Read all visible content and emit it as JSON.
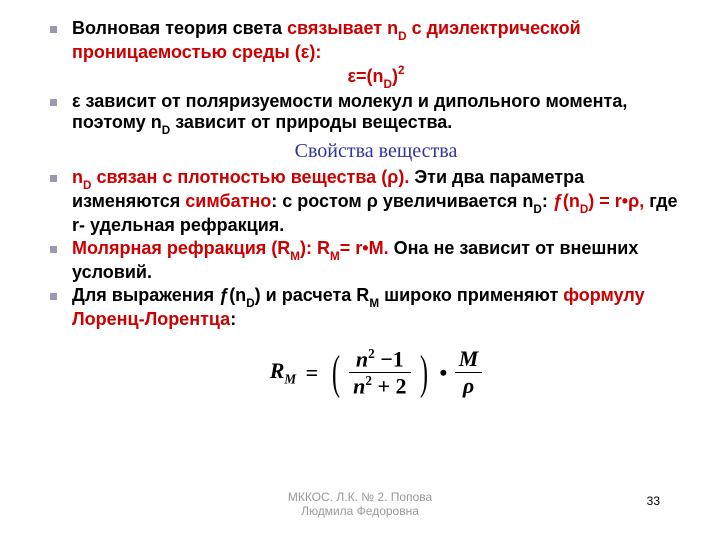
{
  "bullets": {
    "b1a": "Волновая теория света ",
    "b1b": "связывает n",
    "b1c": " с диэлектрической проницаемостью среды (ε):",
    "formula1a": "ε=(n",
    "formula1b": ")",
    "b2": "ε зависит от поляризуемости молекул и дипольного момента, поэтому n",
    "b2b": " зависит от природы вещества.",
    "section": "Свойства вещества",
    "b3a": "n",
    "b3b": " связан с плотностью вещества (ρ). ",
    "b3c": "Эти два параметра изменяются ",
    "b3d": "симбатно",
    "b3e": ": с ростом ρ увеличивается n",
    "b3f": ": ",
    "b3g": "ƒ(n",
    "b3h": ") = r•ρ,",
    "b3i": " где r- удельная рефракция.",
    "b4a": "Молярная рефракция (R",
    "b4b": "): R",
    "b4c": "= r•М. ",
    "b4d": "Она не зависит от внешних условий.",
    "b5a": "Для выражения ƒ(n",
    "b5b": ") и расчета R",
    "b5c": " широко применяют ",
    "b5d": "формулу Лоренц-Лорентца",
    "b5e": ":"
  },
  "sub_d": "D",
  "sub_m": "M",
  "sup_2": "2",
  "formula": {
    "R": "R",
    "M": "M",
    "eq": "=",
    "lp": "(",
    "rp": ")",
    "n": "n",
    "two": "2",
    "minus1": "−1",
    "plus2": "+ 2",
    "dot": "•",
    "bigM": "M",
    "rho": "ρ"
  },
  "footer": "МККОС. Л.К. № 2. Попова Людмила Федоровна",
  "footer_l1": "МККОС. Л.К. № 2. Попова",
  "footer_l2": "Людмила Федоровна",
  "page": "33"
}
